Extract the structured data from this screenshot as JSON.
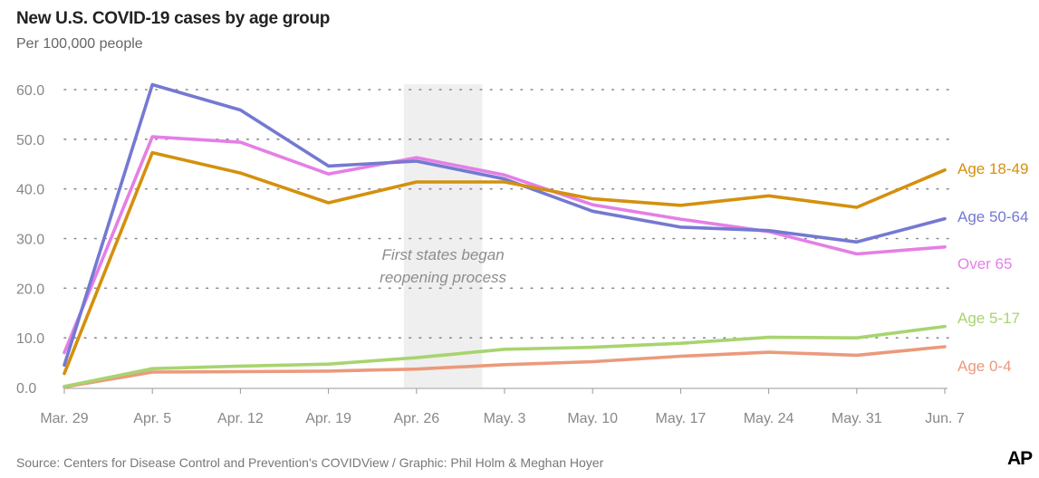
{
  "chart_data": {
    "type": "line",
    "title": "New U.S. COVID-19 cases by age group",
    "subtitle": "Per 100,000 people",
    "xlabel": "",
    "ylabel": "",
    "ylim": [
      0,
      60
    ],
    "yticks": [
      "0.0",
      "10.0",
      "20.0",
      "30.0",
      "40.0",
      "50.0",
      "60.0"
    ],
    "categories": [
      "Mar. 29",
      "Apr. 5",
      "Apr. 12",
      "Apr. 19",
      "Apr. 26",
      "May. 3",
      "May. 10",
      "May. 17",
      "May. 24",
      "May. 31",
      "Jun. 7"
    ],
    "series": [
      {
        "name": "Age 18-49",
        "color": "#d4900e",
        "values": [
          2.8,
          47.3,
          43.2,
          37.2,
          41.4,
          41.4,
          38.0,
          36.7,
          38.6,
          36.3,
          43.8
        ]
      },
      {
        "name": "Age 50-64",
        "color": "#7479d1",
        "values": [
          4.5,
          61.0,
          55.9,
          44.6,
          45.6,
          42.0,
          35.5,
          32.3,
          31.6,
          29.3,
          34.0
        ]
      },
      {
        "name": "Over 65",
        "color": "#e47fe6",
        "values": [
          7.0,
          50.5,
          49.4,
          43.0,
          46.3,
          42.8,
          36.8,
          33.9,
          31.4,
          26.9,
          28.3
        ]
      },
      {
        "name": "Age 5-17",
        "color": "#a8d46f",
        "values": [
          0.2,
          3.8,
          4.3,
          4.7,
          6.0,
          7.7,
          8.1,
          8.9,
          10.1,
          10.0,
          12.3
        ]
      },
      {
        "name": "Age 0-4",
        "color": "#eb9a7c",
        "values": [
          0.1,
          3.1,
          3.2,
          3.3,
          3.7,
          4.6,
          5.2,
          6.3,
          7.1,
          6.5,
          8.2
        ]
      }
    ],
    "annotation": {
      "lines": [
        "First states began",
        "reopening process"
      ],
      "range": [
        "Apr. 26",
        "May. 3"
      ]
    },
    "grid": true,
    "legend": "right"
  },
  "source": "Source: Centers for Disease Control and Prevention's COVIDView / Graphic: Phil Holm & Meghan Hoyer",
  "logo": "AP"
}
